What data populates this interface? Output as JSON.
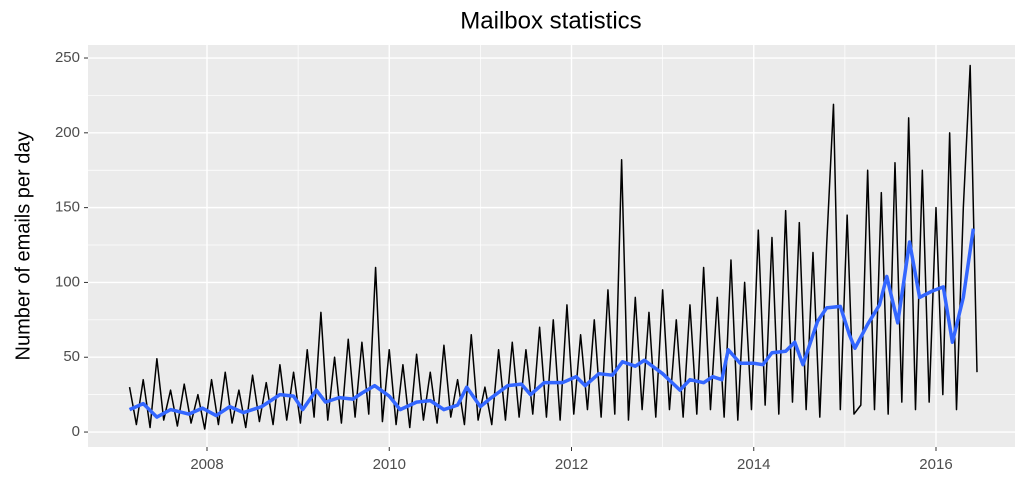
{
  "chart_data": {
    "type": "line",
    "title": "Mailbox statistics",
    "y_label": "Number of emails per day",
    "xlim": [
      2006.694,
      2016.867
    ],
    "xticks": [
      2008,
      2010,
      2012,
      2014,
      2016
    ],
    "ylim": [
      -10,
      258.7
    ],
    "yticks": [
      0,
      50,
      100,
      150,
      200,
      250
    ],
    "grid": true,
    "minor_grid": true,
    "background": "#ebebeb",
    "series": [
      {
        "color": "#000000",
        "width": 1.5,
        "x": [
          2007.15,
          2007.225,
          2007.3,
          2007.375,
          2007.45,
          2007.525,
          2007.6,
          2007.675,
          2007.75,
          2007.825,
          2007.9,
          2007.975,
          2008.05,
          2008.125,
          2008.2,
          2008.275,
          2008.35,
          2008.425,
          2008.5,
          2008.575,
          2008.65,
          2008.725,
          2008.8,
          2008.875,
          2008.95,
          2009.025,
          2009.1,
          2009.175,
          2009.25,
          2009.325,
          2009.4,
          2009.475,
          2009.55,
          2009.625,
          2009.7,
          2009.775,
          2009.85,
          2009.925,
          2010,
          2010.075,
          2010.15,
          2010.225,
          2010.3,
          2010.375,
          2010.45,
          2010.525,
          2010.6,
          2010.675,
          2010.75,
          2010.825,
          2010.9,
          2010.975,
          2011.05,
          2011.125,
          2011.2,
          2011.275,
          2011.35,
          2011.425,
          2011.5,
          2011.575,
          2011.65,
          2011.725,
          2011.8,
          2011.875,
          2011.95,
          2012.025,
          2012.1,
          2012.175,
          2012.25,
          2012.325,
          2012.4,
          2012.475,
          2012.55,
          2012.625,
          2012.7,
          2012.775,
          2012.85,
          2012.925,
          2013,
          2013.075,
          2013.15,
          2013.225,
          2013.3,
          2013.375,
          2013.45,
          2013.525,
          2013.6,
          2013.675,
          2013.75,
          2013.825,
          2013.9,
          2013.975,
          2014.05,
          2014.125,
          2014.2,
          2014.275,
          2014.35,
          2014.425,
          2014.5,
          2014.575,
          2014.65,
          2014.725,
          2014.8,
          2014.875,
          2014.95,
          2015.025,
          2015.1,
          2015.175,
          2015.25,
          2015.325,
          2015.4,
          2015.475,
          2015.55,
          2015.625,
          2015.7,
          2015.775,
          2015.85,
          2015.925,
          2016,
          2016.075,
          2016.15,
          2016.225,
          2016.3,
          2016.375,
          2016.45
        ],
        "values": [
          30,
          5,
          35,
          3,
          49,
          8,
          28,
          4,
          32,
          6,
          25,
          2,
          35,
          5,
          40,
          6,
          28,
          3,
          38,
          7,
          33,
          5,
          45,
          8,
          40,
          6,
          55,
          10,
          80,
          8,
          50,
          6,
          62,
          10,
          60,
          12,
          110,
          7,
          55,
          5,
          45,
          3,
          52,
          8,
          40,
          6,
          58,
          10,
          35,
          5,
          65,
          8,
          30,
          5,
          55,
          8,
          60,
          10,
          55,
          12,
          70,
          10,
          75,
          8,
          85,
          12,
          65,
          15,
          75,
          10,
          95,
          12,
          182,
          8,
          90,
          15,
          80,
          10,
          95,
          15,
          75,
          10,
          85,
          12,
          110,
          15,
          90,
          10,
          115,
          8,
          100,
          15,
          135,
          18,
          130,
          12,
          148,
          20,
          140,
          15,
          120,
          10,
          125,
          219,
          15,
          145,
          12,
          18,
          175,
          15,
          160,
          12,
          180,
          20,
          210,
          15,
          175,
          20,
          150,
          25,
          200,
          15,
          150,
          245,
          40
        ]
      },
      {
        "color": "#3366ff",
        "width": 3.5,
        "x": [
          2007.15,
          2007.3,
          2007.45,
          2007.6,
          2007.8,
          2007.95,
          2008.1,
          2008.25,
          2008.4,
          2008.6,
          2008.8,
          2008.95,
          2009.05,
          2009.2,
          2009.3,
          2009.45,
          2009.6,
          2009.7,
          2009.84,
          2010.0,
          2010.12,
          2010.3,
          2010.45,
          2010.6,
          2010.75,
          2010.85,
          2011.0,
          2011.1,
          2011.3,
          2011.45,
          2011.55,
          2011.7,
          2011.9,
          2012.05,
          2012.15,
          2012.3,
          2012.45,
          2012.56,
          2012.7,
          2012.8,
          2013.0,
          2013.19,
          2013.3,
          2013.45,
          2013.55,
          2013.65,
          2013.72,
          2013.85,
          2014.0,
          2014.1,
          2014.2,
          2014.35,
          2014.45,
          2014.54,
          2014.7,
          2014.8,
          2014.95,
          2015.05,
          2015.11,
          2015.25,
          2015.38,
          2015.46,
          2015.58,
          2015.71,
          2015.82,
          2015.95,
          2016.08,
          2016.18,
          2016.3,
          2016.41
        ],
        "values": [
          15,
          19,
          10,
          15,
          12,
          16,
          11,
          17,
          13,
          17,
          25,
          24,
          15,
          28,
          20,
          23,
          22,
          26,
          31,
          24,
          15,
          20,
          21,
          15,
          18,
          30,
          17,
          22,
          31,
          32,
          25,
          33,
          33,
          37,
          31,
          39,
          38,
          47,
          44,
          48,
          39,
          28,
          35,
          33,
          37,
          35,
          55,
          46,
          46,
          45,
          53,
          54,
          60,
          45,
          74,
          83,
          84,
          65,
          56,
          72,
          85,
          104,
          73,
          127,
          90,
          94,
          97,
          60,
          90,
          136
        ]
      }
    ]
  }
}
